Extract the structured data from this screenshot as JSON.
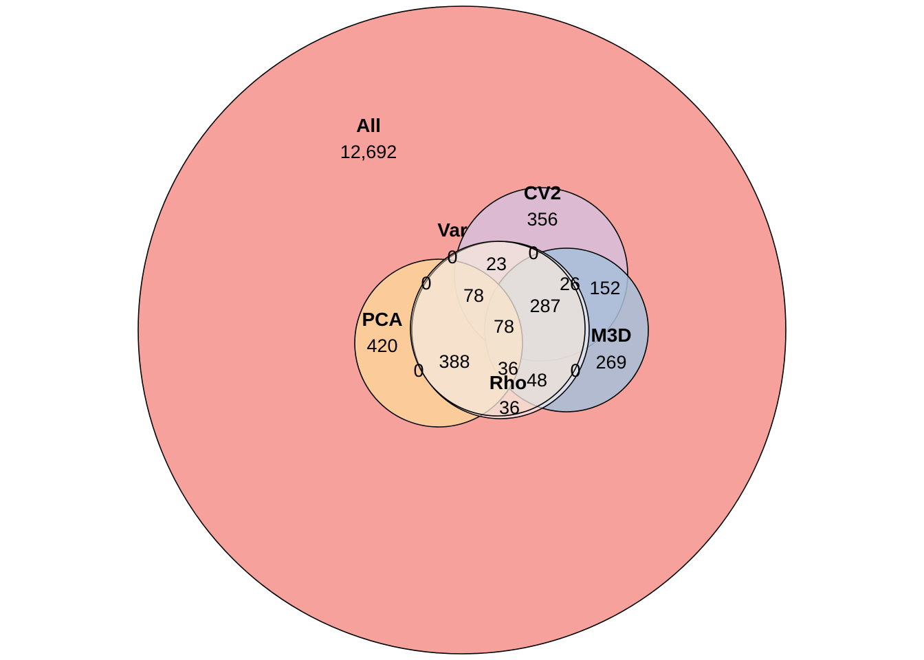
{
  "sets": [
    {
      "id": "all",
      "label": "All",
      "count": "12,692",
      "color": "#F7A19D"
    },
    {
      "id": "cv2",
      "label": "CV2",
      "count": "356",
      "color": "#D6BEDC"
    },
    {
      "id": "m3d",
      "label": "M3D",
      "count": "269",
      "color": "#A7C0DA"
    },
    {
      "id": "pca",
      "label": "PCA",
      "count": "420",
      "color": "#FCD39A"
    },
    {
      "id": "var",
      "label": "Var",
      "count": "0",
      "color": "#EED9C6"
    },
    {
      "id": "rho",
      "label": "Rho",
      "count": "36",
      "color": "#FFFFFF"
    }
  ],
  "intersections": [
    {
      "id": "var-cv2",
      "value": "0"
    },
    {
      "id": "var-pca",
      "value": "0"
    },
    {
      "id": "cv2-top",
      "value": "23"
    },
    {
      "id": "cv2-m3d-edge",
      "value": "0"
    },
    {
      "id": "var-cv2-pca",
      "value": "78"
    },
    {
      "id": "cv2-m3d-inner",
      "value": "26"
    },
    {
      "id": "cv2-m3d",
      "value": "152"
    },
    {
      "id": "core",
      "value": "287"
    },
    {
      "id": "pca-cv2-rho",
      "value": "78"
    },
    {
      "id": "pca-var",
      "value": "388"
    },
    {
      "id": "pca-edge",
      "value": "0"
    },
    {
      "id": "pca-rho",
      "value": "36"
    },
    {
      "id": "m3d-rho",
      "value": "48"
    },
    {
      "id": "m3d-edge",
      "value": "0"
    }
  ]
}
